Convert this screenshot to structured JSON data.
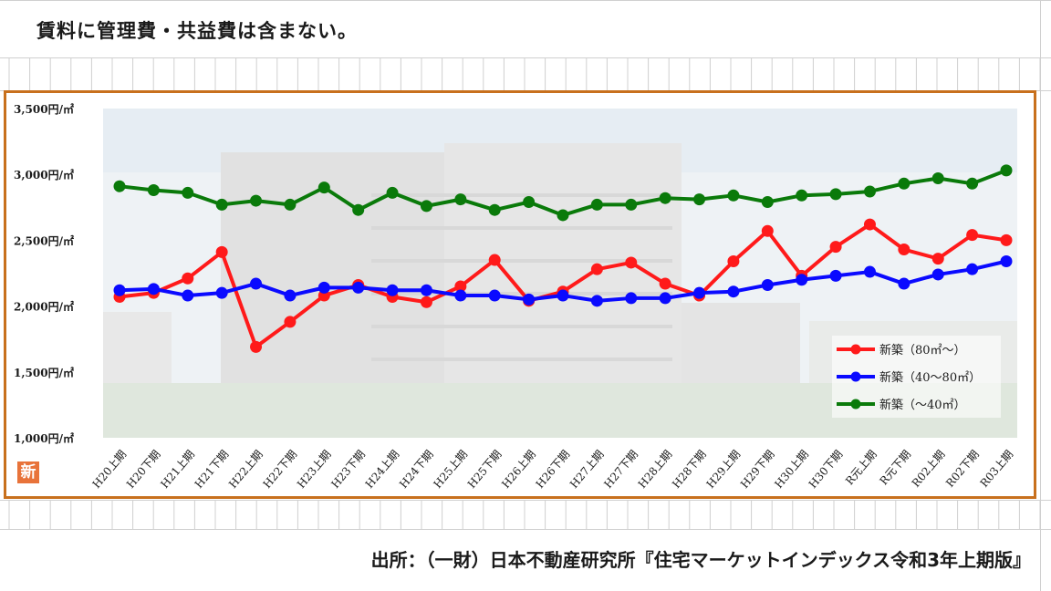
{
  "note": "賃料に管理費・共益費は含まない。",
  "source": "出所：（一財）日本不動産研究所『住宅マーケットインデックス令和3年上期版』",
  "badge": "新",
  "chart_data": {
    "type": "line",
    "ylim": [
      1000,
      3500
    ],
    "yticks": [
      "1,000円/㎡",
      "1,500円/㎡",
      "2,000円/㎡",
      "2,500円/㎡",
      "3,000円/㎡",
      "3,500円/㎡"
    ],
    "ytick_values": [
      1000,
      1500,
      2000,
      2500,
      3000,
      3500
    ],
    "categories": [
      "H20上期",
      "H20下期",
      "H21上期",
      "H21下期",
      "H22上期",
      "H22下期",
      "H23上期",
      "H23下期",
      "H24上期",
      "H24下期",
      "H25上期",
      "H25下期",
      "H26上期",
      "H26下期",
      "H27上期",
      "H27下期",
      "H28上期",
      "H28下期",
      "H29上期",
      "H29下期",
      "H30上期",
      "H30下期",
      "R元上期",
      "R元下期",
      "R02上期",
      "R02下期",
      "R03上期"
    ],
    "legend_position": "bottom-right",
    "series": [
      {
        "name": "新築（80㎡～）",
        "color": "#ff1a1a",
        "values": [
          2070,
          2100,
          2210,
          2410,
          1690,
          1880,
          2080,
          2160,
          2070,
          2030,
          2150,
          2350,
          2040,
          2110,
          2280,
          2330,
          2170,
          2080,
          2340,
          2570,
          2230,
          2450,
          2620,
          2430,
          2360,
          2540,
          2500
        ]
      },
      {
        "name": "新築（40～80㎡）",
        "color": "#0a0aff",
        "values": [
          2120,
          2130,
          2080,
          2100,
          2170,
          2080,
          2140,
          2140,
          2120,
          2120,
          2080,
          2080,
          2050,
          2080,
          2040,
          2060,
          2060,
          2100,
          2110,
          2160,
          2200,
          2230,
          2260,
          2170,
          2240,
          2280,
          2340
        ]
      },
      {
        "name": "新築（～40㎡）",
        "color": "#0a7a0a",
        "values": [
          2910,
          2880,
          2860,
          2770,
          2800,
          2770,
          2900,
          2730,
          2860,
          2760,
          2810,
          2730,
          2790,
          2690,
          2770,
          2770,
          2820,
          2810,
          2840,
          2790,
          2840,
          2850,
          2870,
          2930,
          2970,
          2930,
          3030
        ]
      }
    ]
  }
}
